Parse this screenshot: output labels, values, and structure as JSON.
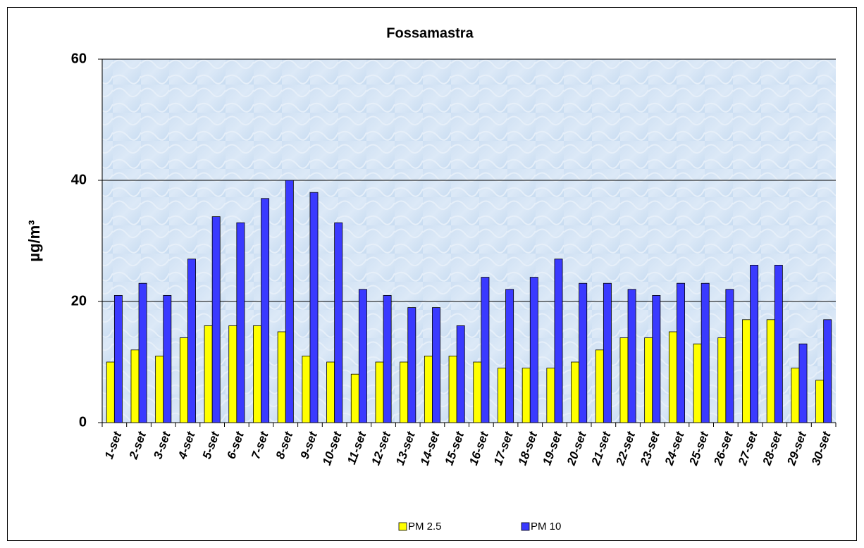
{
  "chart_data": {
    "type": "bar",
    "title": "Fossamastra",
    "y_label": "µg/m³",
    "categories": [
      "1-set",
      "2-set",
      "3-set",
      "4-set",
      "5-set",
      "6-set",
      "7-set",
      "8-set",
      "9-set",
      "10-set",
      "11-set",
      "12-set",
      "13-set",
      "14-set",
      "15-set",
      "16-set",
      "17-set",
      "18-set",
      "19-set",
      "20-set",
      "21-set",
      "22-set",
      "23-set",
      "24-set",
      "25-set",
      "26-set",
      "27-set",
      "28-set",
      "29-set",
      "30-set"
    ],
    "series": [
      {
        "name": "PM 2.5",
        "color": "#ffff00",
        "values": [
          10,
          12,
          11,
          14,
          16,
          16,
          16,
          15,
          11,
          10,
          8,
          10,
          10,
          11,
          11,
          10,
          9,
          9,
          9,
          10,
          12,
          14,
          14,
          15,
          13,
          14,
          17,
          17,
          9,
          7
        ]
      },
      {
        "name": "PM 10",
        "color": "#3a3aff",
        "values": [
          21,
          23,
          21,
          27,
          34,
          33,
          37,
          40,
          38,
          33,
          22,
          21,
          19,
          19,
          16,
          24,
          22,
          24,
          27,
          23,
          23,
          22,
          21,
          23,
          23,
          22,
          26,
          26,
          13,
          17
        ]
      }
    ],
    "ylim": [
      0,
      60
    ],
    "yticks": [
      0,
      20,
      40,
      60
    ],
    "grid": true,
    "legend": "bottom"
  }
}
